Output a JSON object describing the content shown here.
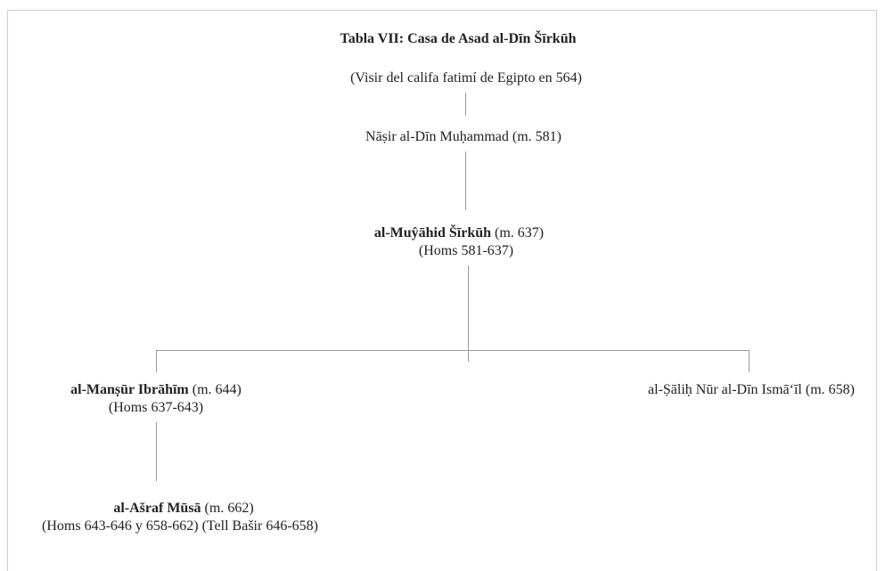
{
  "title": "Tabla VII: Casa de Asad al-Dīn Šīrkūh",
  "nodes": {
    "root": {
      "text": "(Visir del califa fatimí de Egipto en 564)"
    },
    "nasir": {
      "text": "Nāṣir al-Dīn Muḥammad (m. 581)"
    },
    "mujahid": {
      "name": "al-Muŷāhid Šīrkūh",
      "death": " (m. 637)",
      "rule": "(Homs 581-637)"
    },
    "mansur": {
      "name": "al-Manṣūr Ibrāhīm",
      "death": " (m. 644)",
      "rule": "(Homs 637-643)"
    },
    "salih": {
      "text": "al-Ṣāliḥ Nūr al-Dīn Ismā‘īl (m. 658)"
    },
    "asraf": {
      "name": "al-Ašraf Mūsā",
      "death": " (m. 662)",
      "rule": "(Homs 643-646 y 658-662) (Tell Bašir 646-658)"
    }
  }
}
